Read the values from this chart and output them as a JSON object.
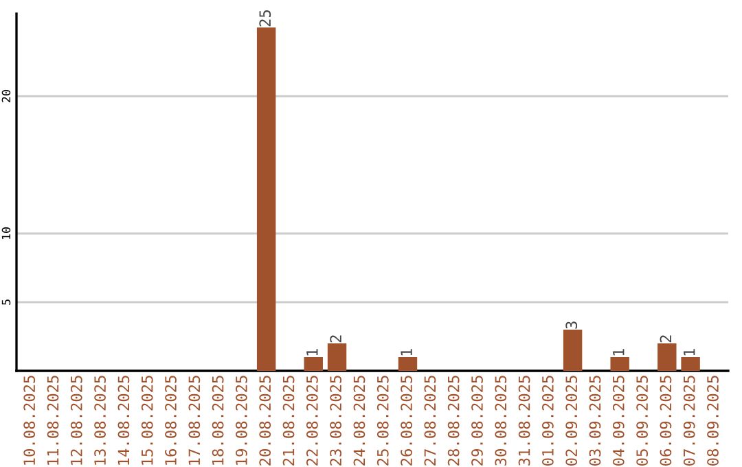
{
  "chart_data": {
    "type": "bar",
    "categories": [
      "10.08.2025",
      "11.08.2025",
      "12.08.2025",
      "13.08.2025",
      "14.08.2025",
      "15.08.2025",
      "16.08.2025",
      "17.08.2025",
      "18.08.2025",
      "19.08.2025",
      "20.08.2025",
      "21.08.2025",
      "22.08.2025",
      "23.08.2025",
      "24.08.2025",
      "25.08.2025",
      "26.08.2025",
      "27.08.2025",
      "28.08.2025",
      "29.08.2025",
      "30.08.2025",
      "31.08.2025",
      "01.09.2025",
      "02.09.2025",
      "03.09.2025",
      "04.09.2025",
      "05.09.2025",
      "06.09.2025",
      "07.09.2025",
      "08.09.2025"
    ],
    "values": [
      0,
      0,
      0,
      0,
      0,
      0,
      0,
      0,
      0,
      0,
      25,
      0,
      1,
      2,
      0,
      0,
      1,
      0,
      0,
      0,
      0,
      0,
      0,
      3,
      0,
      1,
      0,
      2,
      1,
      0
    ],
    "value_labels": [
      null,
      null,
      null,
      null,
      null,
      null,
      null,
      null,
      null,
      null,
      "25",
      null,
      "1",
      "2",
      null,
      null,
      "1",
      null,
      null,
      null,
      null,
      null,
      null,
      "3",
      null,
      "1",
      null,
      "2",
      "1",
      null
    ],
    "color": "#a0522d",
    "ylim": [
      0,
      26
    ],
    "yticks": [
      5,
      10,
      20
    ],
    "grid": "y"
  }
}
